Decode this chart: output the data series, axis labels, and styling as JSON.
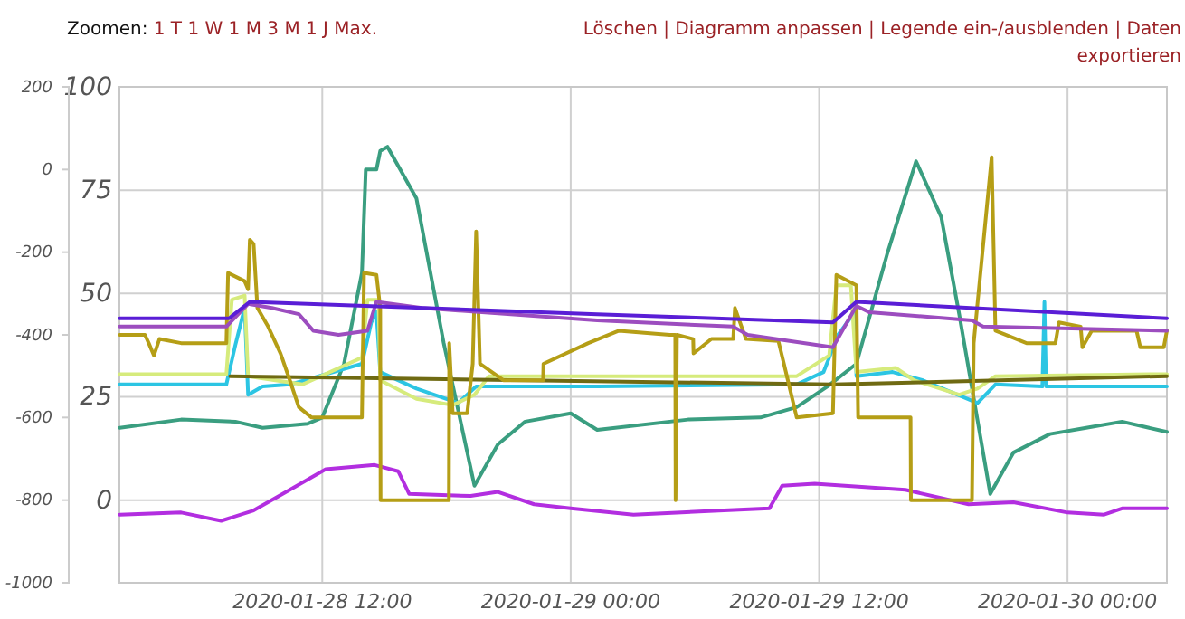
{
  "chart_data": {
    "type": "line",
    "annotations": [
      "Zoomen: 1 T 1 W 1 M 3 M 1 J Max.",
      "Löschen | Diagramm anpassen | Legende ein-/ausblenden | Daten exportieren"
    ],
    "xlim": [
      "2020-01-28T02:12",
      "2020-01-30T04:48"
    ],
    "xticks": [
      {
        "value": "2020-01-28T12:00",
        "label": "2020-01-28 12:00"
      },
      {
        "value": "2020-01-29T00:00",
        "label": "2020-01-29 00:00"
      },
      {
        "value": "2020-01-29T12:00",
        "label": "2020-01-29 12:00"
      },
      {
        "value": "2020-01-30T00:00",
        "label": "2020-01-30 00:00"
      }
    ],
    "ylim": [
      -20,
      100
    ],
    "yticks": [
      0,
      25,
      50,
      75,
      100
    ],
    "y2lim": [
      -1000,
      200
    ],
    "y2ticks": [
      -1000,
      -800,
      -600,
      -400,
      -200,
      0,
      200
    ],
    "grid": true,
    "series": [
      {
        "color": "#b22ee0",
        "axis": "y2",
        "x": [
          "2020-01-28T02:13",
          "2020-01-28T05:11",
          "2020-01-28T07:07",
          "2020-01-28T08:41",
          "2020-01-28T10:26",
          "2020-01-28T12:10",
          "2020-01-28T14:32",
          "2020-01-28T15:40",
          "2020-01-28T16:12",
          "2020-01-28T19:10",
          "2020-01-28T20:29",
          "2020-01-28T22:14",
          "2020-01-29T00:00",
          "2020-01-29T03:02",
          "2020-01-29T07:24",
          "2020-01-29T09:36",
          "2020-01-29T10:13",
          "2020-01-29T11:47",
          "2020-01-29T16:10",
          "2020-01-29T19:13",
          "2020-01-29T21:23",
          "2020-01-30T00:00",
          "2020-01-30T01:46",
          "2020-01-30T02:38",
          "2020-01-30T04:48"
        ],
        "values": [
          -835,
          -830,
          -850,
          -825,
          -775,
          -725,
          -715,
          -730,
          -785,
          -790,
          -780,
          -810,
          -820,
          -835,
          -825,
          -820,
          -765,
          -760,
          -775,
          -810,
          -805,
          -830,
          -835,
          -820,
          -820
        ]
      },
      {
        "color": "#3a9e80",
        "x": [
          "2020-01-28T02:13",
          "2020-01-28T05:11",
          "2020-01-28T07:48",
          "2020-01-28T09:07",
          "2020-01-28T11:18",
          "2020-01-28T12:00",
          "2020-01-28T13:03",
          "2020-01-28T13:55",
          "2020-01-28T14:06",
          "2020-01-28T14:37",
          "2020-01-28T14:48",
          "2020-01-28T15:09",
          "2020-01-28T16:33",
          "2020-01-28T17:52",
          "2020-01-28T19:21",
          "2020-01-28T20:29",
          "2020-01-28T21:48",
          "2020-01-29T00:00",
          "2020-01-29T01:17",
          "2020-01-29T05:40",
          "2020-01-29T09:10",
          "2020-01-29T10:55",
          "2020-01-29T12:24",
          "2020-01-29T13:48",
          "2020-01-29T15:17",
          "2020-01-29T16:41",
          "2020-01-29T17:54",
          "2020-01-29T18:46",
          "2020-01-29T20:16",
          "2020-01-29T21:23",
          "2020-01-29T23:09",
          "2020-01-30T00:54",
          "2020-01-30T02:38",
          "2020-01-30T04:48"
        ],
        "values": [
          17.5,
          19.5,
          19,
          17.5,
          18.5,
          20,
          33,
          55,
          80,
          80,
          84.5,
          85.5,
          73,
          38,
          3.5,
          13.5,
          19,
          21,
          17,
          19.5,
          20,
          22.5,
          27.5,
          33,
          59.5,
          82,
          68.5,
          45,
          1.5,
          11.5,
          16,
          17.5,
          19,
          16.5
        ]
      },
      {
        "color": "#2cc5e3",
        "x": [
          "2020-01-28T02:13",
          "2020-01-28T07:22",
          "2020-01-28T07:48",
          "2020-01-28T08:15",
          "2020-01-28T08:25",
          "2020-01-28T09:07",
          "2020-01-28T10:26",
          "2020-01-28T13:55",
          "2020-01-28T14:22",
          "2020-01-28T14:37",
          "2020-01-28T14:48",
          "2020-01-28T16:33",
          "2020-01-28T18:34",
          "2020-01-28T19:26",
          "2020-01-29T01:17",
          "2020-01-29T10:55",
          "2020-01-29T12:13",
          "2020-01-29T12:55",
          "2020-01-29T13:43",
          "2020-01-29T13:48",
          "2020-01-29T15:33",
          "2020-01-29T17:01",
          "2020-01-29T19:39",
          "2020-01-29T20:31",
          "2020-01-29T22:47",
          "2020-01-29T22:53",
          "2020-01-29T22:58",
          "2020-01-30T04:48"
        ],
        "values": [
          28,
          28,
          37.5,
          46.5,
          25.5,
          27.5,
          28,
          33,
          43,
          45.5,
          31,
          27,
          23.5,
          27.5,
          27.5,
          28,
          31,
          40,
          45.5,
          30,
          31,
          29,
          23.5,
          28,
          27.5,
          48,
          27.5,
          27.5
        ]
      },
      {
        "color": "#d6eb7c",
        "x": [
          "2020-01-28T02:13",
          "2020-01-28T07:22",
          "2020-01-28T07:38",
          "2020-01-28T08:15",
          "2020-01-28T08:25",
          "2020-01-28T11:03",
          "2020-01-28T13:55",
          "2020-01-28T14:11",
          "2020-01-28T14:43",
          "2020-01-28T14:48",
          "2020-01-28T16:33",
          "2020-01-28T18:18",
          "2020-01-28T19:21",
          "2020-01-28T20:03",
          "2020-01-29T01:17",
          "2020-01-29T10:55",
          "2020-01-29T12:29",
          "2020-01-29T12:50",
          "2020-01-29T13:32",
          "2020-01-29T13:48",
          "2020-01-29T15:43",
          "2020-01-29T16:35",
          "2020-01-29T18:46",
          "2020-01-29T19:39",
          "2020-01-29T20:31",
          "2020-01-30T04:48"
        ],
        "values": [
          30.5,
          30.5,
          48.5,
          49.5,
          30,
          28,
          34.5,
          48.5,
          48.5,
          29,
          24.5,
          23,
          25.5,
          30,
          30,
          30,
          35,
          52,
          52,
          31,
          32,
          29,
          25.5,
          27,
          30,
          30.5
        ]
      },
      {
        "color": "#6f6a12",
        "x": [
          "2020-01-28T07:33",
          "2020-01-29T12:40",
          "2020-01-30T04:48"
        ],
        "values": [
          30,
          28,
          30
        ]
      },
      {
        "color": "#b59e16",
        "x": [
          "2020-01-28T02:13",
          "2020-01-28T03:26",
          "2020-01-28T03:37",
          "2020-01-28T03:52",
          "2020-01-28T04:08",
          "2020-01-28T05:11",
          "2020-01-28T07:22",
          "2020-01-28T07:27",
          "2020-01-28T08:15",
          "2020-01-28T08:25",
          "2020-01-28T08:30",
          "2020-01-28T08:41",
          "2020-01-28T08:52",
          "2020-01-28T09:23",
          "2020-01-28T09:59",
          "2020-01-28T10:26",
          "2020-01-28T10:52",
          "2020-01-28T11:29",
          "2020-01-28T13:55",
          "2020-01-28T14:01",
          "2020-01-28T14:37",
          "2020-01-28T14:48",
          "2020-01-28T14:49",
          "2020-01-28T18:07",
          "2020-01-28T18:08",
          "2020-01-28T18:18",
          "2020-01-28T19:00",
          "2020-01-28T19:16",
          "2020-01-28T19:26",
          "2020-01-28T19:37",
          "2020-01-28T20:45",
          "2020-01-28T22:40",
          "2020-01-28T22:41",
          "2020-01-29T00:51",
          "2020-01-29T02:20",
          "2020-01-29T04:47",
          "2020-01-29T05:03",
          "2020-01-29T05:04",
          "2020-01-29T05:08",
          "2020-01-29T05:55",
          "2020-01-29T05:56",
          "2020-01-29T06:48",
          "2020-01-29T07:51",
          "2020-01-29T07:56",
          "2020-01-29T08:28",
          "2020-01-29T10:02",
          "2020-01-29T10:18",
          "2020-01-29T10:55",
          "2020-01-29T12:40",
          "2020-01-29T12:50",
          "2020-01-29T13:48",
          "2020-01-29T13:53",
          "2020-01-29T16:25",
          "2020-01-29T16:26",
          "2020-01-29T19:23",
          "2020-01-29T19:28",
          "2020-01-29T20:20",
          "2020-01-29T20:31",
          "2020-01-29T22:01",
          "2020-01-29T23:25",
          "2020-01-29T23:35",
          "2020-01-30T00:38",
          "2020-01-30T00:43",
          "2020-01-30T01:10",
          "2020-01-30T03:20",
          "2020-01-30T03:31",
          "2020-01-30T04:39",
          "2020-01-30T04:48"
        ],
        "values": [
          40,
          40,
          38,
          35,
          39,
          38,
          38,
          55,
          53,
          51,
          63,
          62,
          46.5,
          42,
          35.5,
          29,
          22.5,
          20,
          20,
          55,
          54.5,
          46.5,
          0,
          0,
          38,
          21,
          21,
          33,
          65,
          33,
          29,
          29,
          33,
          38,
          41,
          40,
          40,
          0,
          40,
          39,
          35.5,
          39,
          39,
          46.5,
          39,
          38.5,
          33,
          20,
          21,
          54.5,
          52,
          20,
          20,
          0,
          0,
          38,
          83,
          41,
          38,
          38,
          43,
          42,
          37,
          41,
          41,
          37,
          37,
          41
        ]
      },
      {
        "color": "#9c4dbf",
        "x": [
          "2020-01-28T02:13",
          "2020-01-28T07:22",
          "2020-01-28T08:25",
          "2020-01-28T09:34",
          "2020-01-28T10:52",
          "2020-01-28T11:34",
          "2020-01-28T12:47",
          "2020-01-28T14:11",
          "2020-01-28T14:37",
          "2020-01-28T16:49",
          "2020-01-29T01:17",
          "2020-01-29T07:51",
          "2020-01-29T08:33",
          "2020-01-29T12:40",
          "2020-01-29T13:48",
          "2020-01-29T14:25",
          "2020-01-29T19:23",
          "2020-01-29T19:55",
          "2020-01-30T04:48"
        ],
        "values": [
          42,
          42,
          47.5,
          46.5,
          45,
          41,
          40,
          41,
          48,
          46.5,
          43.5,
          42,
          40,
          37,
          47,
          45.5,
          43.5,
          42,
          41
        ]
      },
      {
        "color": "#5a1ed6",
        "x": [
          "2020-01-28T02:13",
          "2020-01-28T07:30",
          "2020-01-28T08:30",
          "2020-01-29T01:17",
          "2020-01-29T12:40",
          "2020-01-29T13:48",
          "2020-01-30T04:48"
        ],
        "values": [
          44,
          44,
          48,
          45,
          43,
          48,
          44
        ]
      }
    ]
  }
}
